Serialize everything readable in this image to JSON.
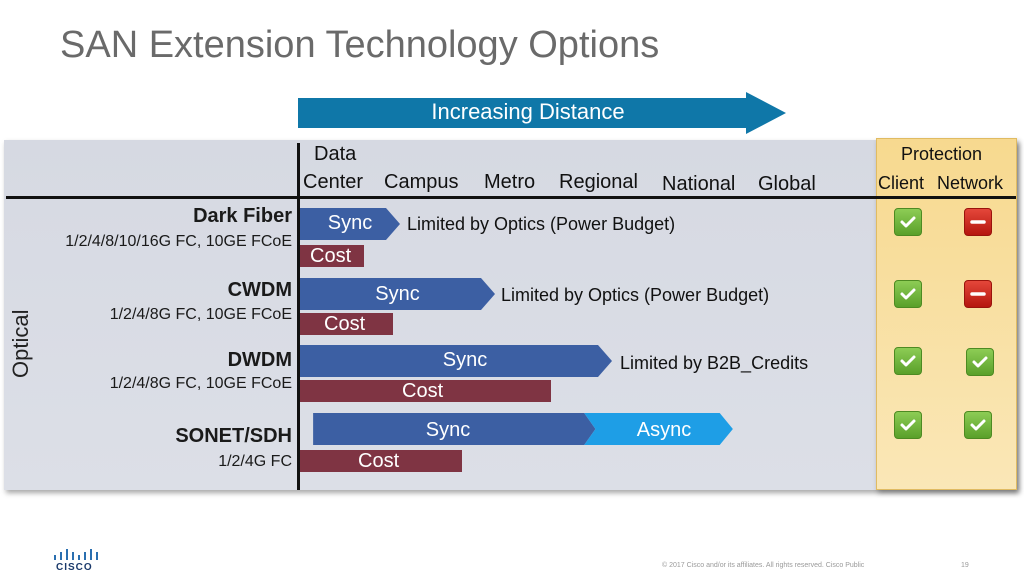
{
  "title": "SAN Extension Technology Options",
  "distance_arrow_label": "Increasing Distance",
  "distance_columns": [
    "Data",
    "Center",
    "Campus",
    "Metro",
    "Regional",
    "National",
    "Global"
  ],
  "protection": {
    "header": "Protection",
    "client_label": "Client",
    "network_label": "Network"
  },
  "side_label": "Optical",
  "rows": [
    {
      "name": "Dark Fiber",
      "rates": "1/2/4/8/10/16G FC, 10GE FCoE",
      "sync_label": "Sync",
      "cost_label": "Cost",
      "limit": "Limited by Optics (Power Budget)",
      "client": "check-icon",
      "network": "minus-icon"
    },
    {
      "name": "CWDM",
      "rates": "1/2/4/8G FC, 10GE FCoE",
      "sync_label": "Sync",
      "cost_label": "Cost",
      "limit": "Limited by Optics (Power Budget)",
      "client": "check-icon",
      "network": "minus-icon"
    },
    {
      "name": "DWDM",
      "rates": "1/2/4/8G FC, 10GE FCoE",
      "sync_label": "Sync",
      "cost_label": "Cost",
      "limit": "Limited by B2B_Credits",
      "client": "check-icon",
      "network": "check-icon"
    },
    {
      "name": "SONET/SDH",
      "rates": "1/2/4G FC",
      "sync_label": "Sync",
      "async_label": "Async",
      "cost_label": "Cost",
      "client": "check-icon",
      "network": "check-icon"
    }
  ],
  "colors": {
    "sync": "#3c5fa3",
    "async": "#1e9ee6",
    "cost": "#7f3443",
    "distance_arrow": "#0f77a8",
    "ok": "#5aa02a",
    "no": "#c0190f"
  },
  "logo_text": "CISCO",
  "footer": "© 2017  Cisco and/or its affiliates. All rights reserved.   Cisco Public",
  "page_number": "19"
}
